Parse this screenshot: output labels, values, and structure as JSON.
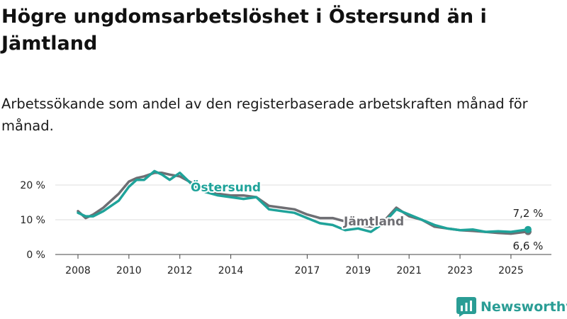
{
  "title": "Högre ungdomsarbetslöshet i Östersund än i Jämtland",
  "subtitle": "Arbetssökande som andel av den registerbaserade arbetskraften månad för månad.",
  "colors": {
    "ostersund": "#1fa39a",
    "jamtland": "#6e6e73",
    "grid": "#dcdcdc",
    "brand": "#2a9d95"
  },
  "brand": {
    "name": "Newsworthy",
    "icon": "bar-chart-logo-icon"
  },
  "chart_data": {
    "type": "line",
    "title": "Högre ungdomsarbetslöshet i Östersund än i Jämtland",
    "subtitle": "Arbetssökande som andel av den registerbaserade arbetskraften månad för månad.",
    "xlabel": "",
    "ylabel": "",
    "xlim": [
      2008.0,
      2025.67
    ],
    "ylim": [
      0,
      25
    ],
    "grid": "horizontal",
    "legend": "direct labels on lines",
    "x_ticks": [
      2008,
      2010,
      2012,
      2014,
      2017,
      2019,
      2021,
      2023,
      2025
    ],
    "y_ticks": [
      {
        "value": 0,
        "label": "0 %"
      },
      {
        "value": 10,
        "label": "10 %"
      },
      {
        "value": 20,
        "label": "20 %"
      }
    ],
    "series": [
      {
        "name": "Jämtland",
        "x": [
          2008.0,
          2008.3,
          2008.6,
          2009.0,
          2009.3,
          2009.6,
          2010.0,
          2010.3,
          2010.6,
          2011.0,
          2011.3,
          2011.6,
          2012.0,
          2012.5,
          2013.0,
          2013.5,
          2014.0,
          2014.5,
          2015.0,
          2015.5,
          2016.0,
          2016.5,
          2017.0,
          2017.5,
          2018.0,
          2018.5,
          2019.0,
          2019.5,
          2020.0,
          2020.5,
          2021.0,
          2021.5,
          2022.0,
          2022.5,
          2023.0,
          2023.5,
          2024.0,
          2024.5,
          2025.0,
          2025.67
        ],
        "y": [
          12.5,
          10.5,
          11.5,
          13.5,
          15.5,
          17.5,
          21.0,
          22.0,
          22.5,
          23.5,
          23.5,
          23.0,
          22.5,
          20.5,
          18.5,
          17.5,
          17.0,
          17.0,
          16.5,
          14.0,
          13.5,
          13.0,
          11.5,
          10.5,
          10.5,
          9.5,
          8.5,
          8.0,
          9.5,
          13.5,
          11.0,
          10.0,
          8.0,
          7.5,
          7.0,
          6.8,
          6.5,
          6.2,
          6.0,
          6.6
        ]
      },
      {
        "name": "Östersund",
        "x": [
          2008.0,
          2008.3,
          2008.6,
          2009.0,
          2009.3,
          2009.6,
          2010.0,
          2010.3,
          2010.6,
          2011.0,
          2011.3,
          2011.6,
          2012.0,
          2012.5,
          2013.0,
          2013.5,
          2014.0,
          2014.5,
          2015.0,
          2015.5,
          2016.0,
          2016.5,
          2017.0,
          2017.5,
          2018.0,
          2018.5,
          2019.0,
          2019.5,
          2020.0,
          2020.5,
          2021.0,
          2021.5,
          2022.0,
          2022.5,
          2023.0,
          2023.5,
          2024.0,
          2024.5,
          2025.0,
          2025.67
        ],
        "y": [
          12.0,
          11.0,
          11.0,
          12.5,
          14.0,
          15.5,
          19.5,
          21.5,
          21.5,
          24.0,
          23.0,
          21.5,
          23.5,
          20.0,
          18.0,
          17.0,
          16.5,
          16.0,
          16.5,
          13.0,
          12.5,
          12.0,
          10.5,
          9.0,
          8.5,
          7.0,
          7.5,
          6.5,
          9.0,
          13.0,
          11.5,
          10.0,
          8.5,
          7.5,
          7.0,
          7.2,
          6.5,
          6.7,
          6.5,
          7.2
        ]
      }
    ],
    "end_labels": {
      "Östersund": "7,2 %",
      "Jämtland": "6,6 %"
    }
  }
}
